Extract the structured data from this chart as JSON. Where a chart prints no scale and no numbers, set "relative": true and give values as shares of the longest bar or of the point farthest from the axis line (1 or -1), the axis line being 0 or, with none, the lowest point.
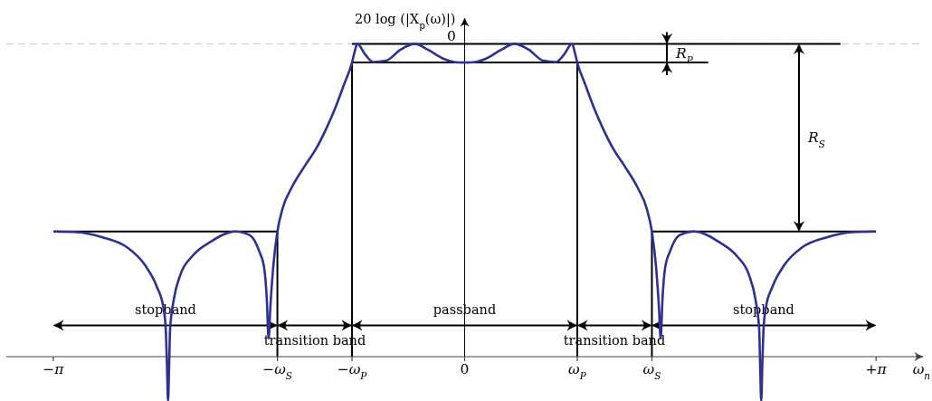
{
  "chart_data": {
    "type": "line",
    "relative": true,
    "ylabel": "20 log (|X$_{p}$(ω)|)",
    "xlabel": "ω$_{n}$",
    "xlim": [
      -3.5,
      3.5
    ],
    "xticks": [
      {
        "value": -3.1416,
        "label": "−π"
      },
      {
        "value": -1.43,
        "label": "−ω$_{S}$"
      },
      {
        "value": -0.86,
        "label": "−ω$_{P}$"
      },
      0,
      {
        "value": 0.86,
        "label": "ω$_{P}$"
      },
      {
        "value": 1.43,
        "label": "ω$_{S}$"
      },
      {
        "value": 3.1416,
        "label": "+π"
      }
    ],
    "series": [
      {
        "color": "#000000",
        "x": [
          -0.86,
          -0.86,
          1.86
        ],
        "values": [
          0,
          0.94,
          0.94
        ]
      },
      {
        "color": "#000000",
        "x": [
          0.86,
          0.86
        ],
        "values": [
          0.94,
          0
        ]
      },
      {
        "color": "#000000",
        "x": [
          -0.86,
          2.87
        ],
        "values": [
          1,
          1
        ]
      },
      {
        "color": "#000000",
        "x": [
          -3.14,
          -1.43,
          -1.43
        ],
        "values": [
          0.4,
          0.4,
          0
        ]
      },
      {
        "color": "#000000",
        "x": [
          1.43,
          1.43,
          3.14
        ],
        "values": [
          0,
          0.4,
          0.4
        ]
      },
      {
        "color": "#2e3192",
        "x": [
          -3.14,
          -2.96,
          -2.77,
          -2.58,
          -2.44,
          -2.35,
          -2.3,
          -2.283,
          -2.274,
          -2.265,
          -2.256,
          -2.249,
          -2.22,
          -2.17,
          -2.08,
          -1.94,
          -1.75,
          -1.64,
          -1.57,
          -1.53,
          -1.511,
          -1.497,
          -1.484,
          -1.463,
          -1.43,
          -1.39,
          -1.32,
          -1.22,
          -1.13,
          -1.06,
          -0.99,
          -0.92,
          -0.86,
          -0.84,
          -0.82,
          -0.76,
          -0.7,
          -0.6,
          -0.49,
          -0.38,
          -0.28,
          -0.16,
          -0.08,
          0,
          0.08,
          0.16,
          0.28,
          0.38,
          0.49,
          0.6,
          0.7,
          0.76,
          0.82,
          0.84,
          0.86,
          0.92,
          0.99,
          1.06,
          1.13,
          1.22,
          1.32,
          1.39,
          1.43,
          1.463,
          1.484,
          1.497,
          1.511,
          1.53,
          1.57,
          1.64,
          1.75,
          1.94,
          2.08,
          2.17,
          2.22,
          2.249,
          2.256,
          2.265,
          2.274,
          2.283,
          2.3,
          2.35,
          2.44,
          2.58,
          2.77,
          2.96,
          3.14
        ],
        "values": [
          0.4,
          0.398,
          0.382,
          0.35,
          0.292,
          0.223,
          0.156,
          0.09,
          -0.017,
          -0.142,
          -0.017,
          0.09,
          0.185,
          0.263,
          0.321,
          0.367,
          0.4,
          0.388,
          0.338,
          0.281,
          0.185,
          0.058,
          0.156,
          0.281,
          0.4,
          0.474,
          0.541,
          0.61,
          0.668,
          0.726,
          0.793,
          0.871,
          0.94,
          0.975,
          1,
          0.966,
          0.942,
          0.946,
          0.981,
          1,
          0.981,
          0.952,
          0.942,
          0.94,
          0.942,
          0.952,
          0.981,
          1,
          0.981,
          0.946,
          0.942,
          0.966,
          1,
          0.975,
          0.94,
          0.871,
          0.793,
          0.726,
          0.668,
          0.61,
          0.541,
          0.474,
          0.4,
          0.281,
          0.156,
          0.058,
          0.185,
          0.281,
          0.338,
          0.388,
          0.4,
          0.367,
          0.321,
          0.263,
          0.185,
          0.09,
          -0.017,
          -0.142,
          -0.017,
          0.09,
          0.156,
          0.223,
          0.292,
          0.35,
          0.382,
          0.398,
          0.4
        ]
      }
    ],
    "ref_lines": [
      {
        "axis": "y",
        "value": 1,
        "color": "#c8c8c8",
        "line_style": "dashed"
      }
    ],
    "annotations": [
      {
        "text": "0",
        "x": -0.1,
        "y": 1
      },
      "stopband",
      "transition band",
      "passband",
      "transition band",
      "stopband",
      "R$_{P}$",
      "R$_{S}$"
    ]
  }
}
